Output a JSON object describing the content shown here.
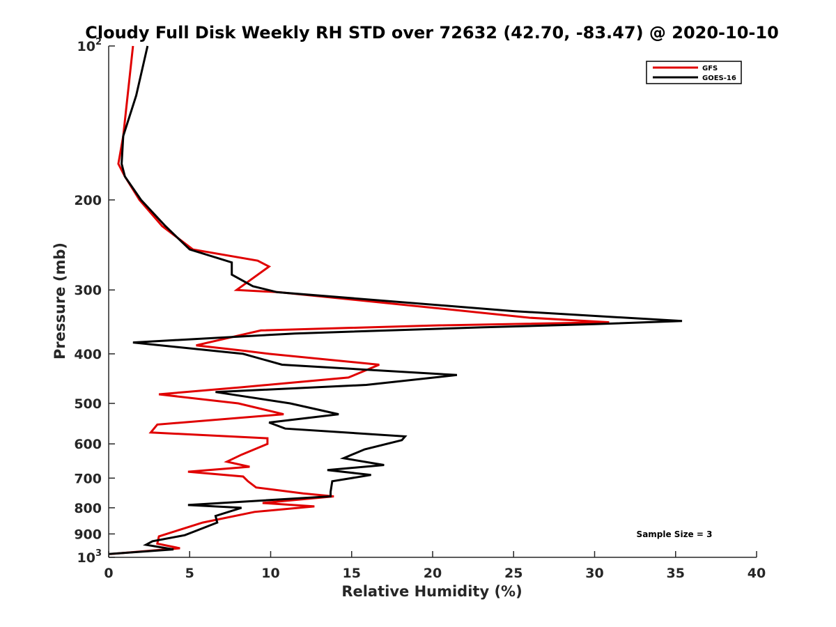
{
  "chart_data": {
    "type": "line",
    "title": "Cloudy Full Disk Weekly RH STD over 72632 (42.70, -83.47) @ 2020-10-10",
    "xlabel": "Relative Humidity (%)",
    "ylabel": "Pressure (mb)",
    "xlim": [
      0,
      40
    ],
    "ylim": [
      100,
      1000
    ],
    "y_scale": "log",
    "y_reversed": true,
    "grid": false,
    "legend_position": "top-right",
    "x_ticks": [
      "0",
      "5",
      "10",
      "15",
      "20",
      "25",
      "30",
      "35",
      "40"
    ],
    "y_ticks": [
      {
        "value": 100,
        "base": "10",
        "exp": "2"
      },
      {
        "value": 200,
        "label": "200"
      },
      {
        "value": 300,
        "label": "300"
      },
      {
        "value": 400,
        "label": "400"
      },
      {
        "value": 500,
        "label": "500"
      },
      {
        "value": 600,
        "label": "600"
      },
      {
        "value": 700,
        "label": "700"
      },
      {
        "value": 800,
        "label": "800"
      },
      {
        "value": 900,
        "label": "900"
      },
      {
        "value": 1000,
        "base": "10",
        "exp": "3"
      }
    ],
    "series": [
      {
        "name": "GFS",
        "color": "#e00000",
        "points": [
          [
            1.5,
            100
          ],
          [
            0.9,
            150
          ],
          [
            0.6,
            170
          ],
          [
            1.0,
            180
          ],
          [
            1.9,
            200
          ],
          [
            3.3,
            225
          ],
          [
            5.2,
            250
          ],
          [
            9.2,
            263
          ],
          [
            9.9,
            270
          ],
          [
            7.9,
            300
          ],
          [
            10.5,
            303
          ],
          [
            20.0,
            325
          ],
          [
            26.0,
            340
          ],
          [
            30.9,
            347
          ],
          [
            20.0,
            352
          ],
          [
            9.4,
            360
          ],
          [
            5.4,
            385
          ],
          [
            8.5,
            395
          ],
          [
            9.9,
            400
          ],
          [
            16.7,
            420
          ],
          [
            14.8,
            445
          ],
          [
            8.2,
            465
          ],
          [
            3.1,
            480
          ],
          [
            8.0,
            500
          ],
          [
            10.8,
            525
          ],
          [
            3.0,
            550
          ],
          [
            2.6,
            570
          ],
          [
            9.8,
            585
          ],
          [
            9.8,
            600
          ],
          [
            8.2,
            630
          ],
          [
            7.3,
            650
          ],
          [
            8.7,
            665
          ],
          [
            4.9,
            680
          ],
          [
            8.3,
            695
          ],
          [
            8.6,
            710
          ],
          [
            9.1,
            730
          ],
          [
            12.0,
            750
          ],
          [
            13.9,
            760
          ],
          [
            11.0,
            775
          ],
          [
            9.5,
            783
          ],
          [
            12.7,
            795
          ],
          [
            9.0,
            815
          ],
          [
            5.8,
            855
          ],
          [
            3.1,
            910
          ],
          [
            3.0,
            940
          ],
          [
            4.4,
            960
          ],
          [
            0.1,
            985
          ]
        ]
      },
      {
        "name": "GOES-16",
        "color": "#000000",
        "points": [
          [
            2.4,
            100
          ],
          [
            1.7,
            125
          ],
          [
            0.9,
            150
          ],
          [
            0.8,
            170
          ],
          [
            1.0,
            180
          ],
          [
            2.0,
            200
          ],
          [
            3.5,
            225
          ],
          [
            5.0,
            250
          ],
          [
            7.6,
            265
          ],
          [
            7.6,
            280
          ],
          [
            8.9,
            295
          ],
          [
            10.4,
            303
          ],
          [
            25.0,
            330
          ],
          [
            35.4,
            345
          ],
          [
            30.0,
            350
          ],
          [
            23.0,
            355
          ],
          [
            11.5,
            365
          ],
          [
            1.5,
            380
          ],
          [
            8.3,
            400
          ],
          [
            10.7,
            420
          ],
          [
            21.5,
            440
          ],
          [
            15.9,
            460
          ],
          [
            6.6,
            475
          ],
          [
            11.2,
            500
          ],
          [
            14.2,
            525
          ],
          [
            9.9,
            545
          ],
          [
            10.9,
            560
          ],
          [
            18.3,
            580
          ],
          [
            18.1,
            590
          ],
          [
            15.8,
            615
          ],
          [
            14.5,
            640
          ],
          [
            17.0,
            660
          ],
          [
            13.5,
            675
          ],
          [
            16.2,
            690
          ],
          [
            13.8,
            710
          ],
          [
            13.7,
            745
          ],
          [
            13.7,
            760
          ],
          [
            4.9,
            790
          ],
          [
            8.2,
            800
          ],
          [
            6.6,
            830
          ],
          [
            6.7,
            855
          ],
          [
            4.7,
            905
          ],
          [
            2.7,
            930
          ],
          [
            2.3,
            945
          ],
          [
            4.0,
            965
          ],
          [
            0.0,
            985
          ]
        ]
      }
    ],
    "annotation": "Sample Size = 3"
  }
}
